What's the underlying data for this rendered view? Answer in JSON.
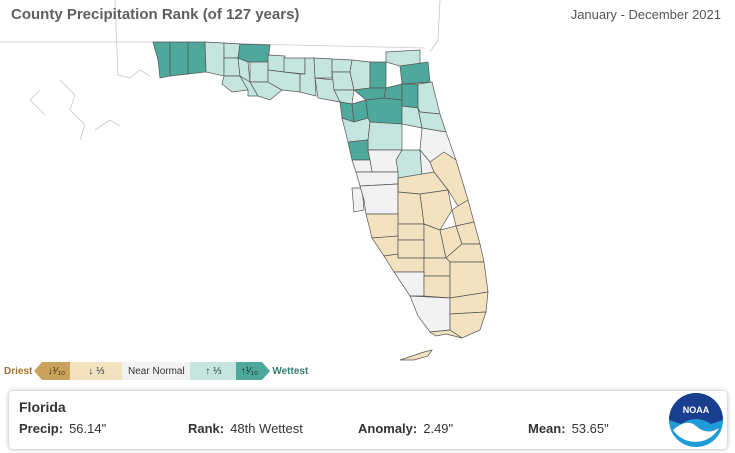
{
  "header": {
    "title": "County Precipitation Rank (of 127 years)",
    "period": "January - December 2021"
  },
  "legend": {
    "driest_label": "Driest",
    "wettest_label": "Wettest",
    "bins": [
      {
        "label": "↓¹⁄₁₀",
        "color": "#c9a25e",
        "text_color": "#3a2a10"
      },
      {
        "label": "↓ ⅓",
        "color": "#f3e2bf",
        "text_color": "#333"
      },
      {
        "label": "Near Normal",
        "color": "#f2f2f2",
        "text_color": "#333"
      },
      {
        "label": "↑ ⅓",
        "color": "#c4e6df",
        "text_color": "#333"
      },
      {
        "label": "↑¹⁄₁₀",
        "color": "#4fa89c",
        "text_color": "#10302c"
      }
    ],
    "driest_color": "#a0722a",
    "wettest_color": "#2f7f73"
  },
  "map": {
    "colors": {
      "wettest": "#4fa89c",
      "above": "#c4e6df",
      "normal": "#f2f2f2",
      "below": "#f3e2bf",
      "outline": "#555555",
      "neighbor_outline": "#bbbbbb"
    }
  },
  "info": {
    "state": "Florida",
    "precip_label": "Precip:",
    "precip_value": "56.14\"",
    "rank_label": "Rank:",
    "rank_value": "48th Wettest",
    "anomaly_label": "Anomaly:",
    "anomaly_value": "2.49\"",
    "mean_label": "Mean:",
    "mean_value": "53.65\""
  },
  "logo": {
    "text": "NOAA",
    "icon": "noaa-logo-icon"
  }
}
